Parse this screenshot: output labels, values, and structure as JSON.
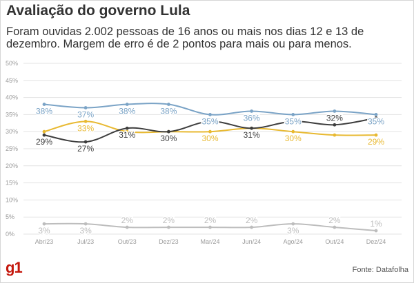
{
  "header": {
    "title": "Avaliação do governo Lula",
    "subtitle": "Foram ouvidas 2.002 pessoas de 16 anos ou mais nos dias 12 e 13 de dezembro. Margem de erro é de 2 pontos para mais ou para menos."
  },
  "footer": {
    "logo": "g1",
    "source": "Fonte: Datafolha"
  },
  "chart_data": {
    "type": "line",
    "categories": [
      "Abr/23",
      "Jul/23",
      "Out/23",
      "Dez/23",
      "Mar/24",
      "Jun/24",
      "Ago/24",
      "Out/24",
      "Dez/24"
    ],
    "ylim": [
      0,
      50
    ],
    "yticks": [
      "0%",
      "5%",
      "10%",
      "15%",
      "20%",
      "25%",
      "30%",
      "35%",
      "40%",
      "45%",
      "50%"
    ],
    "grid": true,
    "legend": "none",
    "series": [
      {
        "color": "#7aa3c6",
        "values": [
          38,
          37,
          38,
          38,
          35,
          36,
          35,
          36,
          35
        ],
        "labels": [
          "38%",
          "37%",
          "38%",
          "38%",
          "35%",
          "36%",
          "35%",
          "36%",
          "35%"
        ],
        "label_position": [
          "below",
          "below",
          "below",
          "below",
          "below",
          "below",
          "below",
          "below",
          "below"
        ]
      },
      {
        "color": "#e8b931",
        "values": [
          30,
          33,
          30,
          30,
          30,
          31,
          30,
          29,
          29
        ],
        "labels": [
          "",
          "33%",
          "",
          "",
          "30%",
          "",
          "30%",
          "",
          "29%"
        ],
        "label_position": [
          "below",
          "below",
          "below",
          "below",
          "below",
          "below",
          "below",
          "below",
          "below"
        ]
      },
      {
        "color": "#3d3d3d",
        "values": [
          29,
          27,
          31,
          30,
          33,
          31,
          33,
          32,
          34
        ],
        "labels": [
          "29%",
          "27%",
          "31%",
          "30%",
          "",
          "31%",
          "",
          "32%",
          ""
        ],
        "label_position": [
          "below",
          "below",
          "below",
          "below",
          "below",
          "below",
          "below",
          "above",
          "below"
        ]
      },
      {
        "color": "#bdbdbd",
        "values": [
          3,
          3,
          2,
          2,
          2,
          2,
          3,
          2,
          1
        ],
        "labels": [
          "3%",
          "3%",
          "2%",
          "2%",
          "2%",
          "2%",
          "3%",
          "2%",
          "1%"
        ],
        "label_position": [
          "below",
          "below",
          "above",
          "above",
          "above",
          "above",
          "below",
          "above",
          "above"
        ]
      }
    ]
  }
}
